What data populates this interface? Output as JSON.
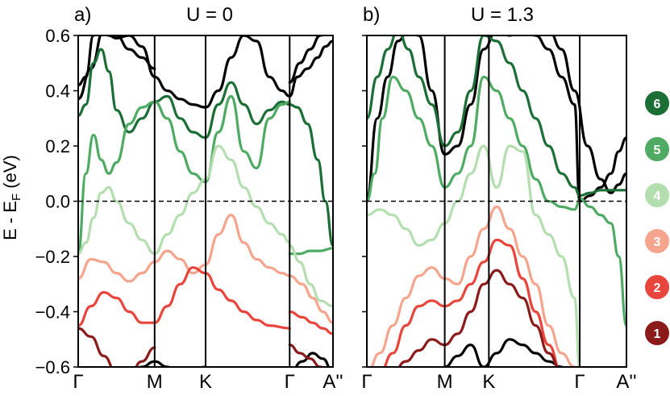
{
  "chart_data": [
    {
      "type": "line",
      "panel_label": "a)",
      "title": "U = 0",
      "ylabel": "E - E",
      "ylabel_sub": "F",
      "ylabel_unit": " (eV)",
      "ylim": [
        -0.6,
        0.6
      ],
      "yticks": [
        -0.6,
        -0.4,
        -0.2,
        0.0,
        0.2,
        0.4,
        0.6
      ],
      "ytick_labels": [
        "−0.6",
        "−0.4",
        "−0.2",
        "0.0",
        "0.2",
        "0.4",
        "0.6"
      ],
      "xlim": [
        0,
        1
      ],
      "kpoints": [
        0,
        0.3,
        0.5,
        0.83,
        1
      ],
      "kpoint_labels": [
        "Γ",
        "M",
        "K",
        "Γ",
        "A''"
      ],
      "fermi_level": 0.0,
      "series": [
        {
          "band": 1,
          "color": "#8b1a1a",
          "x": [
            0.0,
            0.05,
            0.1,
            0.15,
            0.2,
            0.25,
            0.3
          ],
          "values": [
            -0.46,
            -0.49,
            -0.56,
            -0.62,
            -0.63,
            -0.58,
            -0.53
          ]
        },
        {
          "band": 1,
          "color": "#8b1a1a",
          "x": [
            0.83,
            0.87,
            0.91,
            0.95,
            1.0
          ],
          "values": [
            -0.52,
            -0.55,
            -0.57,
            -0.6,
            -0.62
          ]
        },
        {
          "band": 2,
          "color": "#e8453c",
          "x": [
            0.0,
            0.05,
            0.1,
            0.15,
            0.2,
            0.25,
            0.3,
            0.35,
            0.4,
            0.45,
            0.5,
            0.55,
            0.6,
            0.65,
            0.7,
            0.75,
            0.83
          ],
          "values": [
            -0.45,
            -0.38,
            -0.33,
            -0.35,
            -0.4,
            -0.44,
            -0.44,
            -0.38,
            -0.3,
            -0.24,
            -0.26,
            -0.32,
            -0.36,
            -0.4,
            -0.43,
            -0.45,
            -0.46
          ]
        },
        {
          "band": 2,
          "color": "#e8453c",
          "x": [
            0.83,
            0.88,
            0.92,
            0.96,
            1.0
          ],
          "values": [
            -0.4,
            -0.42,
            -0.44,
            -0.46,
            -0.48
          ]
        },
        {
          "band": 3,
          "color": "#f5a58d",
          "x": [
            0.0,
            0.05,
            0.1,
            0.15,
            0.2,
            0.25,
            0.3,
            0.35,
            0.4,
            0.45,
            0.5,
            0.55,
            0.6,
            0.65,
            0.7,
            0.75,
            0.8,
            0.83
          ],
          "values": [
            -0.28,
            -0.21,
            -0.22,
            -0.26,
            -0.29,
            -0.26,
            -0.22,
            -0.18,
            -0.21,
            -0.26,
            -0.23,
            -0.12,
            -0.05,
            -0.15,
            -0.21,
            -0.24,
            -0.26,
            -0.27
          ]
        },
        {
          "band": 3,
          "color": "#f5a58d",
          "x": [
            0.83,
            0.88,
            0.92,
            0.96,
            1.0
          ],
          "values": [
            -0.27,
            -0.3,
            -0.35,
            -0.4,
            -0.44
          ]
        },
        {
          "band": 4,
          "color": "#b5deb0",
          "x": [
            0.0,
            0.03,
            0.06,
            0.09,
            0.12,
            0.15,
            0.2,
            0.25,
            0.3,
            0.35,
            0.4,
            0.45,
            0.5,
            0.55,
            0.6,
            0.65,
            0.7,
            0.75,
            0.8,
            0.83
          ],
          "values": [
            -0.19,
            -0.15,
            -0.06,
            0.03,
            0.05,
            0.0,
            -0.08,
            -0.14,
            -0.19,
            -0.12,
            -0.05,
            0.03,
            0.08,
            0.2,
            0.15,
            0.05,
            -0.02,
            -0.08,
            -0.12,
            -0.15
          ]
        },
        {
          "band": 4,
          "color": "#b5deb0",
          "x": [
            0.83,
            0.87,
            0.91,
            0.95,
            1.0
          ],
          "values": [
            -0.16,
            -0.22,
            -0.3,
            -0.36,
            -0.38
          ]
        },
        {
          "band": 5,
          "color": "#4fab63",
          "x": [
            0.0,
            0.03,
            0.06,
            0.09,
            0.12,
            0.15,
            0.2,
            0.25,
            0.3,
            0.35,
            0.4,
            0.45,
            0.5,
            0.55,
            0.6,
            0.65,
            0.7,
            0.75,
            0.8,
            0.83
          ],
          "values": [
            -0.19,
            0.1,
            0.24,
            0.15,
            0.1,
            0.14,
            0.28,
            0.34,
            0.36,
            0.3,
            0.18,
            0.1,
            0.07,
            0.25,
            0.38,
            0.18,
            0.12,
            0.3,
            0.35,
            0.36
          ]
        },
        {
          "band": 5,
          "color": "#4fab63",
          "x": [
            0.83,
            0.87,
            0.91,
            0.95,
            1.0
          ],
          "values": [
            -0.19,
            -0.19,
            -0.18,
            -0.18,
            -0.17
          ]
        },
        {
          "band": 6,
          "color": "#1b6e35",
          "x": [
            0.0,
            0.03,
            0.06,
            0.09,
            0.12,
            0.15,
            0.2,
            0.25,
            0.3,
            0.35,
            0.4,
            0.45,
            0.5,
            0.55,
            0.6,
            0.65,
            0.7,
            0.75,
            0.8,
            0.83
          ],
          "values": [
            0.31,
            0.35,
            0.5,
            0.55,
            0.47,
            0.33,
            0.25,
            0.3,
            0.36,
            0.38,
            0.3,
            0.25,
            0.23,
            0.35,
            0.43,
            0.35,
            0.28,
            0.33,
            0.36,
            0.35
          ]
        },
        {
          "band": 6,
          "color": "#1b6e35",
          "x": [
            0.83,
            0.86,
            0.9,
            0.94,
            0.97,
            1.0
          ],
          "values": [
            0.35,
            0.34,
            0.28,
            0.15,
            0.0,
            -0.16
          ]
        },
        {
          "band": 0,
          "color": "#000000",
          "x": [
            0.0,
            0.03,
            0.06,
            0.09,
            0.12,
            0.15,
            0.2,
            0.25,
            0.3,
            0.35,
            0.4,
            0.45,
            0.5,
            0.55,
            0.6,
            0.65,
            0.7,
            0.75,
            0.8,
            0.83
          ],
          "values": [
            0.42,
            0.45,
            0.6,
            0.62,
            0.6,
            0.59,
            0.6,
            0.56,
            0.45,
            0.4,
            0.37,
            0.35,
            0.34,
            0.4,
            0.52,
            0.6,
            0.58,
            0.45,
            0.4,
            0.38
          ]
        },
        {
          "band": 0,
          "color": "#000000",
          "x": [
            0.0,
            0.05,
            0.1,
            0.15,
            0.2,
            0.25,
            0.3
          ],
          "values": [
            0.37,
            0.48,
            0.62,
            0.6,
            0.55,
            0.52,
            0.48
          ]
        },
        {
          "band": 0,
          "color": "#000000",
          "x": [
            0.83,
            0.86,
            0.9,
            0.94,
            0.97,
            1.0
          ],
          "values": [
            0.38,
            0.45,
            0.48,
            0.52,
            0.56,
            0.58
          ]
        },
        {
          "band": 0,
          "color": "#000000",
          "x": [
            0.83,
            0.87,
            0.91,
            0.95,
            1.0
          ],
          "values": [
            0.43,
            0.5,
            0.55,
            0.6,
            0.62
          ]
        },
        {
          "band": 0,
          "color": "#000000",
          "x": [
            0.2,
            0.25,
            0.3,
            0.35,
            0.4,
            0.45,
            0.5
          ],
          "values": [
            -0.63,
            -0.6,
            -0.58,
            -0.6,
            -0.62,
            -0.61,
            -0.6
          ]
        },
        {
          "band": 0,
          "color": "#000000",
          "x": [
            0.83,
            0.88,
            0.92,
            0.96,
            1.0
          ],
          "values": [
            -0.62,
            -0.58,
            -0.55,
            -0.57,
            -0.62
          ]
        }
      ]
    },
    {
      "type": "line",
      "panel_label": "b)",
      "title": "U = 1.3",
      "ylim": [
        -0.6,
        0.6
      ],
      "xlim": [
        0,
        1
      ],
      "kpoints": [
        0,
        0.3,
        0.47,
        0.82,
        1
      ],
      "kpoint_labels": [
        "Γ",
        "M",
        "K",
        "Γ",
        "A''"
      ],
      "fermi_level": 0.0,
      "series": [
        {
          "band": 1,
          "color": "#8b1a1a",
          "x": [
            0.1,
            0.15,
            0.2,
            0.25,
            0.3,
            0.35,
            0.4,
            0.45,
            0.5,
            0.55,
            0.6,
            0.65,
            0.7,
            0.75
          ],
          "values": [
            -0.62,
            -0.58,
            -0.54,
            -0.5,
            -0.52,
            -0.48,
            -0.4,
            -0.3,
            -0.25,
            -0.3,
            -0.35,
            -0.45,
            -0.55,
            -0.62
          ]
        },
        {
          "band": 2,
          "color": "#e8453c",
          "x": [
            0.05,
            0.1,
            0.15,
            0.2,
            0.25,
            0.3,
            0.35,
            0.4,
            0.45,
            0.5,
            0.55,
            0.6,
            0.65,
            0.7,
            0.75
          ],
          "values": [
            -0.62,
            -0.55,
            -0.45,
            -0.38,
            -0.36,
            -0.38,
            -0.36,
            -0.3,
            -0.22,
            -0.14,
            -0.16,
            -0.28,
            -0.4,
            -0.52,
            -0.62
          ]
        },
        {
          "band": 3,
          "color": "#f5a58d",
          "x": [
            0.0,
            0.05,
            0.1,
            0.15,
            0.2,
            0.25,
            0.3,
            0.35,
            0.4,
            0.45,
            0.5,
            0.55,
            0.6,
            0.65,
            0.7,
            0.75,
            0.8,
            0.82
          ],
          "values": [
            -0.62,
            -0.55,
            -0.45,
            -0.35,
            -0.27,
            -0.24,
            -0.28,
            -0.3,
            -0.2,
            -0.1,
            -0.02,
            -0.1,
            -0.2,
            -0.3,
            -0.45,
            -0.55,
            -0.6,
            -0.62
          ]
        },
        {
          "band": 4,
          "color": "#b5deb0",
          "x": [
            0.0,
            0.05,
            0.1,
            0.15,
            0.2,
            0.25,
            0.3,
            0.35,
            0.4,
            0.45,
            0.5,
            0.55,
            0.6,
            0.65,
            0.7,
            0.75,
            0.8,
            0.82
          ],
          "values": [
            -0.05,
            -0.03,
            -0.05,
            -0.1,
            -0.16,
            -0.14,
            -0.08,
            0.0,
            0.1,
            0.2,
            0.05,
            0.2,
            0.18,
            -0.05,
            -0.12,
            -0.2,
            -0.35,
            -0.6
          ]
        },
        {
          "band": 5,
          "color": "#4fab63",
          "x": [
            0.0,
            0.03,
            0.06,
            0.1,
            0.15,
            0.2,
            0.25,
            0.3,
            0.35,
            0.4,
            0.45,
            0.5,
            0.55,
            0.6,
            0.65,
            0.7,
            0.75,
            0.8,
            0.82
          ],
          "values": [
            0.0,
            0.1,
            0.3,
            0.45,
            0.4,
            0.3,
            0.2,
            0.05,
            0.1,
            0.2,
            0.45,
            0.4,
            0.3,
            0.2,
            0.08,
            0.0,
            -0.02,
            -0.03,
            0.0
          ]
        },
        {
          "band": 5,
          "color": "#4fab63",
          "x": [
            0.82,
            0.86,
            0.9,
            0.94,
            0.97,
            1.0
          ],
          "values": [
            0.01,
            -0.02,
            -0.05,
            -0.08,
            -0.2,
            -0.45
          ]
        },
        {
          "band": 6,
          "color": "#1b6e35",
          "x": [
            0.0,
            0.04,
            0.08,
            0.12,
            0.16,
            0.2,
            0.25,
            0.3,
            0.35,
            0.4,
            0.45,
            0.5,
            0.55,
            0.6,
            0.65,
            0.7,
            0.75,
            0.8,
            0.82
          ],
          "values": [
            0.3,
            0.45,
            0.55,
            0.62,
            0.55,
            0.45,
            0.35,
            0.2,
            0.25,
            0.4,
            0.6,
            0.58,
            0.5,
            0.4,
            0.3,
            0.2,
            0.1,
            0.05,
            0.02
          ]
        },
        {
          "band": 6,
          "color": "#1b6e35",
          "x": [
            0.82,
            0.86,
            0.9,
            0.94,
            0.97,
            1.0
          ],
          "values": [
            0.02,
            0.03,
            0.04,
            0.04,
            0.04,
            0.04
          ]
        },
        {
          "band": 0,
          "color": "#000000",
          "x": [
            0.0,
            0.04,
            0.08,
            0.12,
            0.16,
            0.2,
            0.25,
            0.3,
            0.35,
            0.4,
            0.45,
            0.5,
            0.55,
            0.6,
            0.65,
            0.7,
            0.75,
            0.8,
            0.82
          ],
          "values": [
            0.01,
            0.3,
            0.45,
            0.58,
            0.62,
            0.6,
            0.4,
            0.17,
            0.2,
            0.35,
            0.55,
            0.62,
            0.6,
            0.62,
            0.6,
            0.55,
            0.45,
            0.35,
            0.0
          ]
        },
        {
          "band": 0,
          "color": "#000000",
          "x": [
            0.82,
            0.86,
            0.9,
            0.94,
            0.97,
            1.0
          ],
          "values": [
            0.0,
            0.02,
            0.05,
            0.1,
            0.18,
            0.23
          ]
        },
        {
          "band": 0,
          "color": "#000000",
          "x": [
            0.7,
            0.75,
            0.8,
            0.85,
            0.9,
            0.94,
            0.97,
            1.0
          ],
          "values": [
            0.62,
            0.55,
            0.4,
            0.2,
            0.08,
            0.03,
            0.06,
            0.1
          ]
        },
        {
          "band": 0,
          "color": "#000000",
          "x": [
            0.3,
            0.35,
            0.4,
            0.45,
            0.5,
            0.55,
            0.6,
            0.65,
            0.7,
            0.75
          ],
          "values": [
            -0.6,
            -0.56,
            -0.52,
            -0.6,
            -0.55,
            -0.5,
            -0.52,
            -0.55,
            -0.58,
            -0.6
          ]
        }
      ]
    }
  ],
  "legend": {
    "placement": "right",
    "items": [
      {
        "label": "6",
        "color": "#1b6e35"
      },
      {
        "label": "5",
        "color": "#4fab63"
      },
      {
        "label": "4",
        "color": "#b5deb0"
      },
      {
        "label": "3",
        "color": "#f5a58d"
      },
      {
        "label": "2",
        "color": "#e8453c"
      },
      {
        "label": "1",
        "color": "#8b1a1a"
      }
    ]
  }
}
